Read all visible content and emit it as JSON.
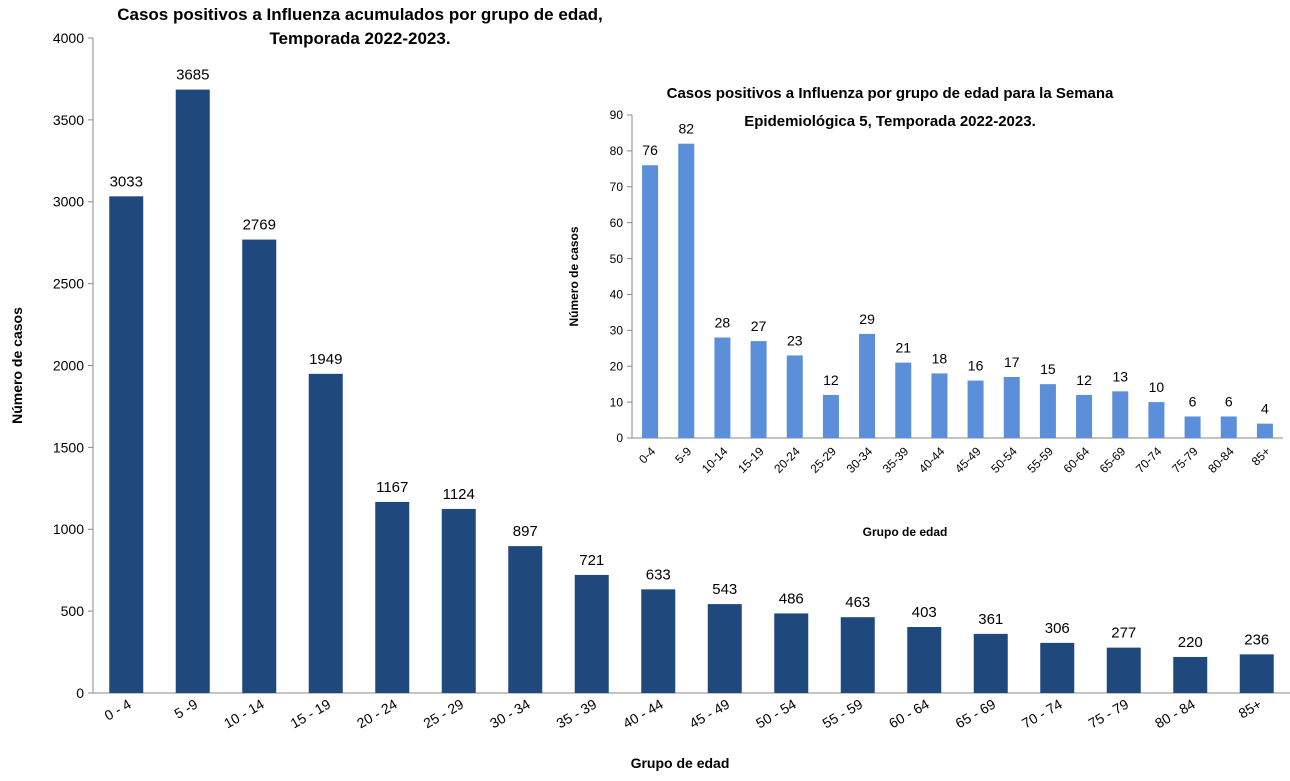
{
  "chart_data": [
    {
      "type": "bar",
      "title": [
        "Casos positivos a Influenza acumulados por grupo de edad,",
        "Temporada 2022-2023."
      ],
      "x_label": "Grupo de edad",
      "y_label": "Número de casos",
      "categories": [
        "0 - 4",
        "5 -9",
        "10 - 14",
        "15 - 19",
        "20 - 24",
        "25 - 29",
        "30 - 34",
        "35 - 39",
        "40 - 44",
        "45 - 49",
        "50 - 54",
        "55 - 59",
        "60 - 64",
        "65 - 69",
        "70 - 74",
        "75 - 79",
        "80 - 84",
        "85+"
      ],
      "values": [
        3033,
        3685,
        2769,
        1949,
        1167,
        1124,
        897,
        721,
        633,
        543,
        486,
        463,
        403,
        361,
        306,
        277,
        220,
        236
      ],
      "color": "#1f497d",
      "ylim": [
        0,
        4000
      ],
      "yticks": [
        0,
        500,
        1000,
        1500,
        2000,
        2500,
        3000,
        3500,
        4000
      ],
      "grid": false
    },
    {
      "type": "bar",
      "title": [
        "Casos positivos a Influenza por grupo de edad para la Semana",
        "Epidemiológica 5, Temporada 2022-2023."
      ],
      "x_label": "Grupo de edad",
      "y_label": "Número de casos",
      "categories": [
        "0-4",
        "5-9",
        "10-14",
        "15-19",
        "20-24",
        "25-29",
        "30-34",
        "35-39",
        "40-44",
        "45-49",
        "50-54",
        "55-59",
        "60-64",
        "65-69",
        "70-74",
        "75-79",
        "80-84",
        "85+"
      ],
      "values": [
        76,
        82,
        28,
        27,
        23,
        12,
        29,
        21,
        18,
        16,
        17,
        15,
        12,
        13,
        10,
        6,
        6,
        4
      ],
      "color": "#5b8fd9",
      "ylim": [
        0,
        90
      ],
      "yticks": [
        0,
        10,
        20,
        30,
        40,
        50,
        60,
        70,
        80,
        90
      ],
      "grid": false
    }
  ]
}
